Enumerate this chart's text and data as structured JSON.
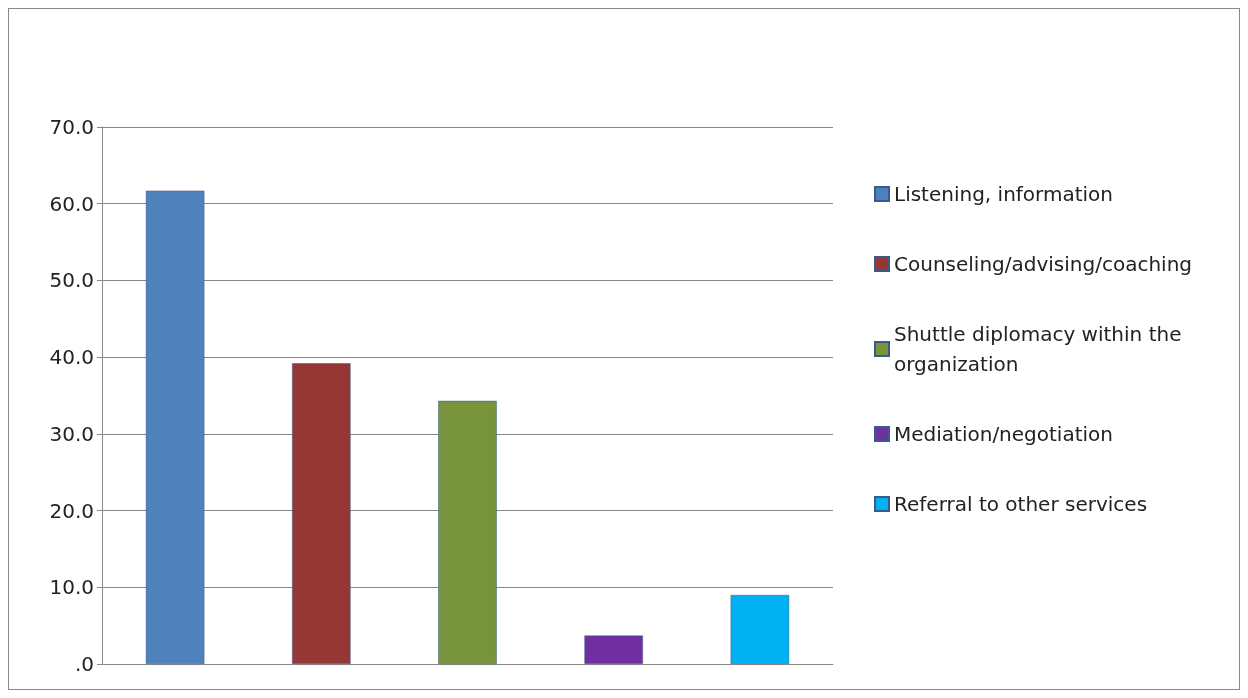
{
  "chart_data": {
    "type": "bar",
    "categories": [
      null,
      null,
      null,
      null,
      null
    ],
    "series": [
      {
        "name": "Listening, information",
        "color": "#4f81bd",
        "values": [
          61.7,
          null,
          null,
          null,
          null
        ]
      },
      {
        "name": "Counseling/advising/coaching",
        "color": "#953735",
        "values": [
          null,
          39.2,
          null,
          null,
          null
        ]
      },
      {
        "name": "Shuttle diplomacy within the organization",
        "color": "#77933c",
        "values": [
          null,
          null,
          34.3,
          null,
          null
        ]
      },
      {
        "name": "Mediation/negotiation",
        "color": "#7030a0",
        "values": [
          null,
          null,
          null,
          3.7,
          null
        ]
      },
      {
        "name": "Referral to other services",
        "color": "#00b0f0",
        "values": [
          null,
          null,
          null,
          null,
          9.0
        ]
      }
    ],
    "stacked": true,
    "ylim": [
      0,
      70
    ],
    "yticks": [
      {
        "value": 0,
        "label": ".0"
      },
      {
        "value": 10,
        "label": "10.0"
      },
      {
        "value": 20,
        "label": "20.0"
      },
      {
        "value": 30,
        "label": "30.0"
      },
      {
        "value": 40,
        "label": "40.0"
      },
      {
        "value": 50,
        "label": "50.0"
      },
      {
        "value": 60,
        "label": "60.0"
      },
      {
        "value": 70,
        "label": "70.0"
      }
    ],
    "grid": "y",
    "legend": "right",
    "tick_labels": "y"
  }
}
